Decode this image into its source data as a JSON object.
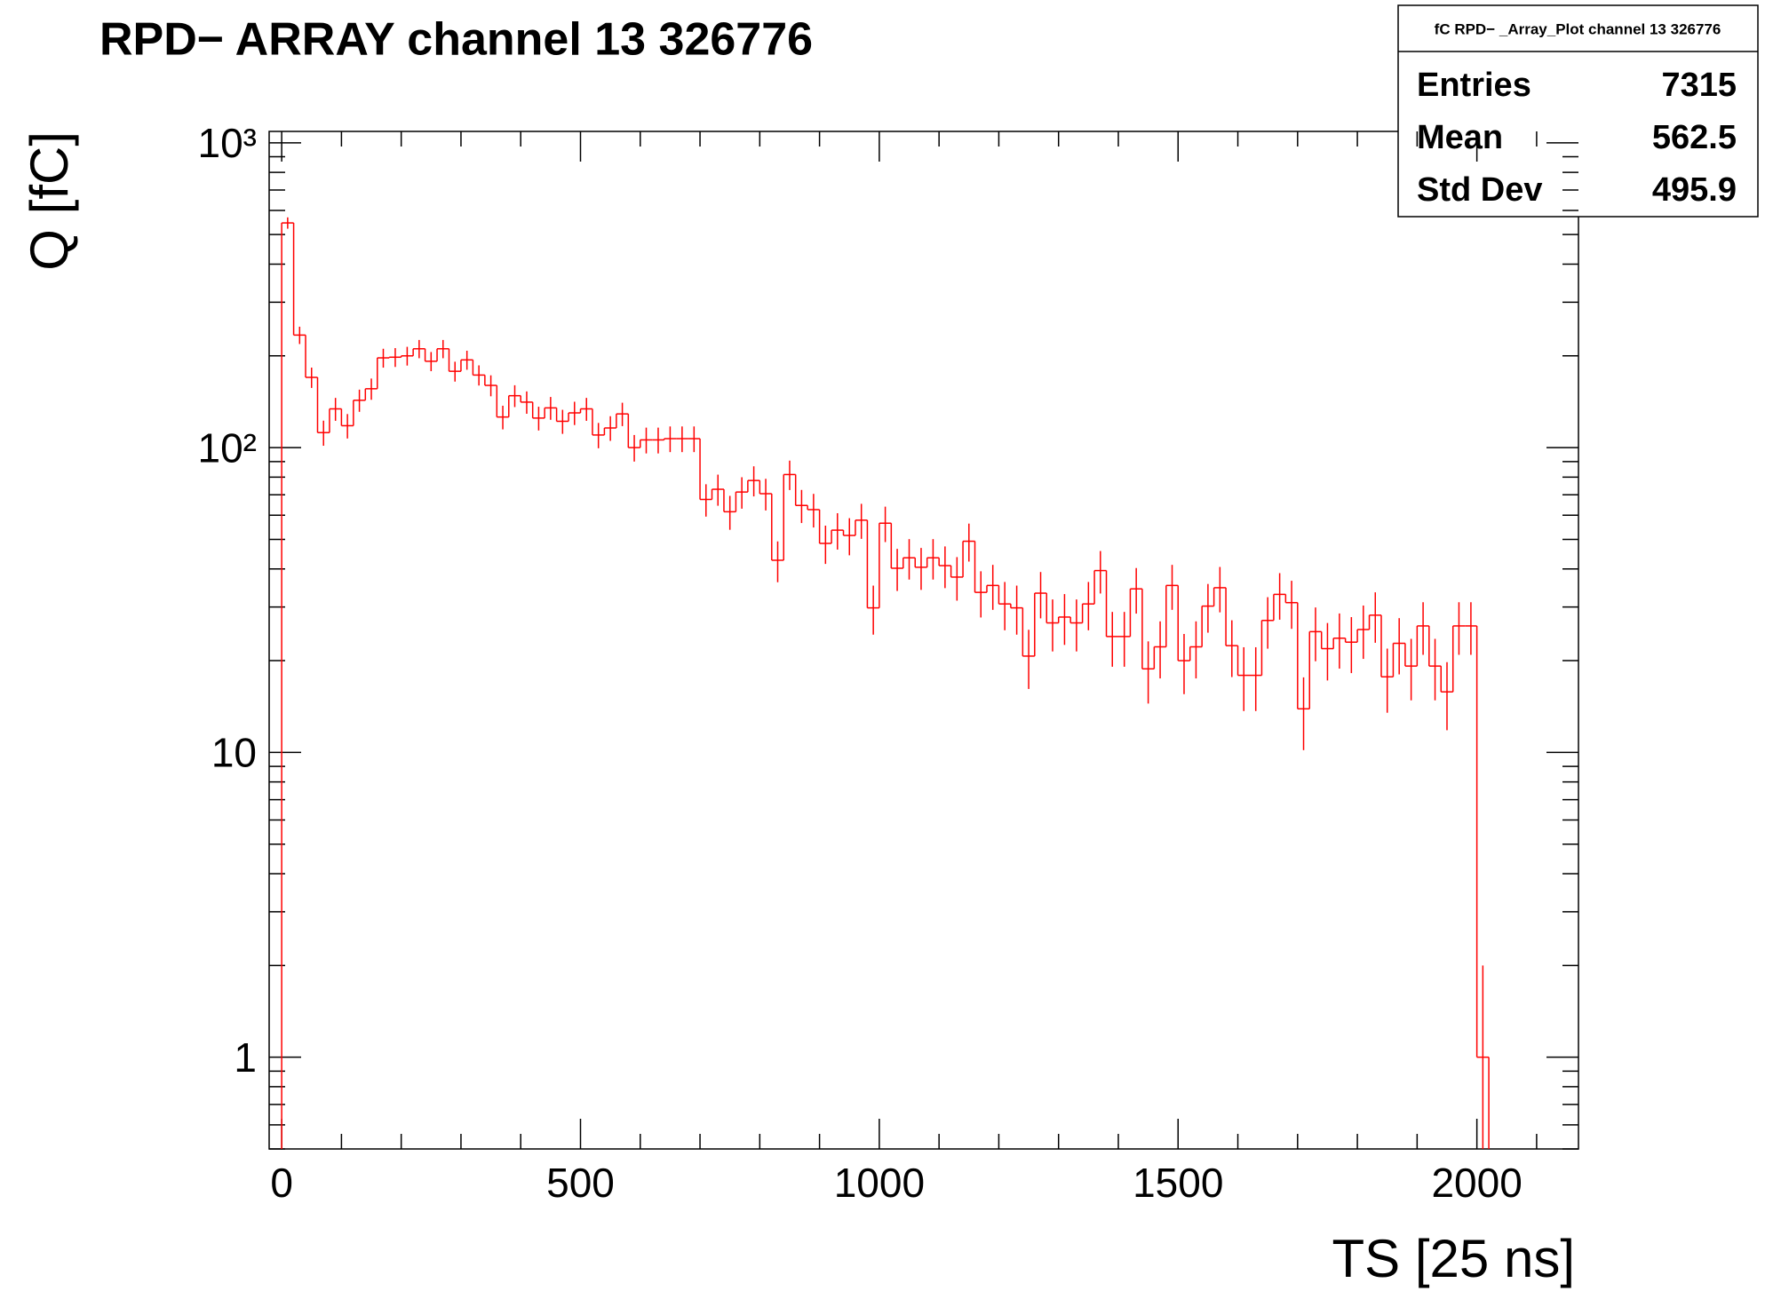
{
  "chart_data": {
    "type": "histogram",
    "title": "RPD− ARRAY channel 13 326776",
    "x_label": "TS [25 ns]",
    "y_label": "Q [fC]",
    "color": "#ff0000",
    "log_y": true,
    "stats": {
      "title": "fC RPD− _Array_Plot channel 13 326776",
      "rows": [
        [
          "Entries",
          "7315"
        ],
        [
          "Mean",
          "562.5"
        ],
        [
          "Std Dev",
          "495.9"
        ]
      ]
    },
    "xlim": [
      -21,
      2170
    ],
    "xticks": [
      0,
      500,
      1000,
      1500,
      2000
    ],
    "ylim": [
      0.5,
      1090
    ],
    "yticks": [
      1,
      10,
      {
        "value": 100,
        "label": "10²"
      },
      {
        "value": 1000,
        "label": "10³"
      }
    ],
    "bins": [
      0,
      20,
      40,
      60,
      80,
      100,
      120,
      140,
      160,
      180,
      200,
      220,
      240,
      260,
      280,
      300,
      320,
      340,
      360,
      380,
      400,
      420,
      440,
      460,
      480,
      500,
      520,
      540,
      560,
      580,
      600,
      620,
      640,
      660,
      680,
      700,
      720,
      740,
      760,
      780,
      800,
      820,
      840,
      860,
      880,
      900,
      920,
      940,
      960,
      980,
      1000,
      1020,
      1040,
      1060,
      1080,
      1100,
      1120,
      1140,
      1160,
      1180,
      1200,
      1220,
      1240,
      1260,
      1280,
      1300,
      1320,
      1340,
      1360,
      1380,
      1400,
      1420,
      1440,
      1460,
      1480,
      1500,
      1520,
      1540,
      1560,
      1580,
      1600,
      1620,
      1640,
      1660,
      1680,
      1700,
      1720,
      1740,
      1760,
      1780,
      1800,
      1820,
      1840,
      1860,
      1880,
      1900,
      1920,
      1940,
      1960,
      1980,
      2000,
      2020
    ],
    "values": [
      546,
      234,
      170,
      112,
      134,
      118,
      143,
      156,
      197,
      198,
      200,
      211,
      192,
      211,
      178,
      194,
      173,
      160,
      126,
      148,
      141,
      125,
      135,
      122,
      130,
      134,
      110,
      116,
      129,
      100,
      106,
      106,
      107,
      107,
      107,
      67.6,
      73,
      61.6,
      71.5,
      78,
      70.6,
      42.7,
      81.6,
      64.6,
      62.6,
      48.5,
      53.6,
      51.5,
      57.8,
      29.8,
      56.5,
      40.2,
      43.5,
      40.5,
      43.5,
      41,
      37.6,
      49.3,
      33.5,
      35.3,
      30.7,
      29.8,
      20.7,
      33.3,
      26.6,
      27.8,
      26.6,
      30.7,
      39.5,
      24,
      24,
      34.4,
      18.8,
      22.2,
      35.3,
      20,
      22.2,
      30.2,
      34.7,
      22.4,
      17.9,
      17.9,
      27.1,
      33,
      31,
      13.9,
      24.9,
      21.9,
      23.7,
      23,
      25.3,
      28.2,
      17.7,
      22.8,
      19.2,
      26,
      19.2,
      15.8,
      26,
      26,
      1
    ]
  }
}
